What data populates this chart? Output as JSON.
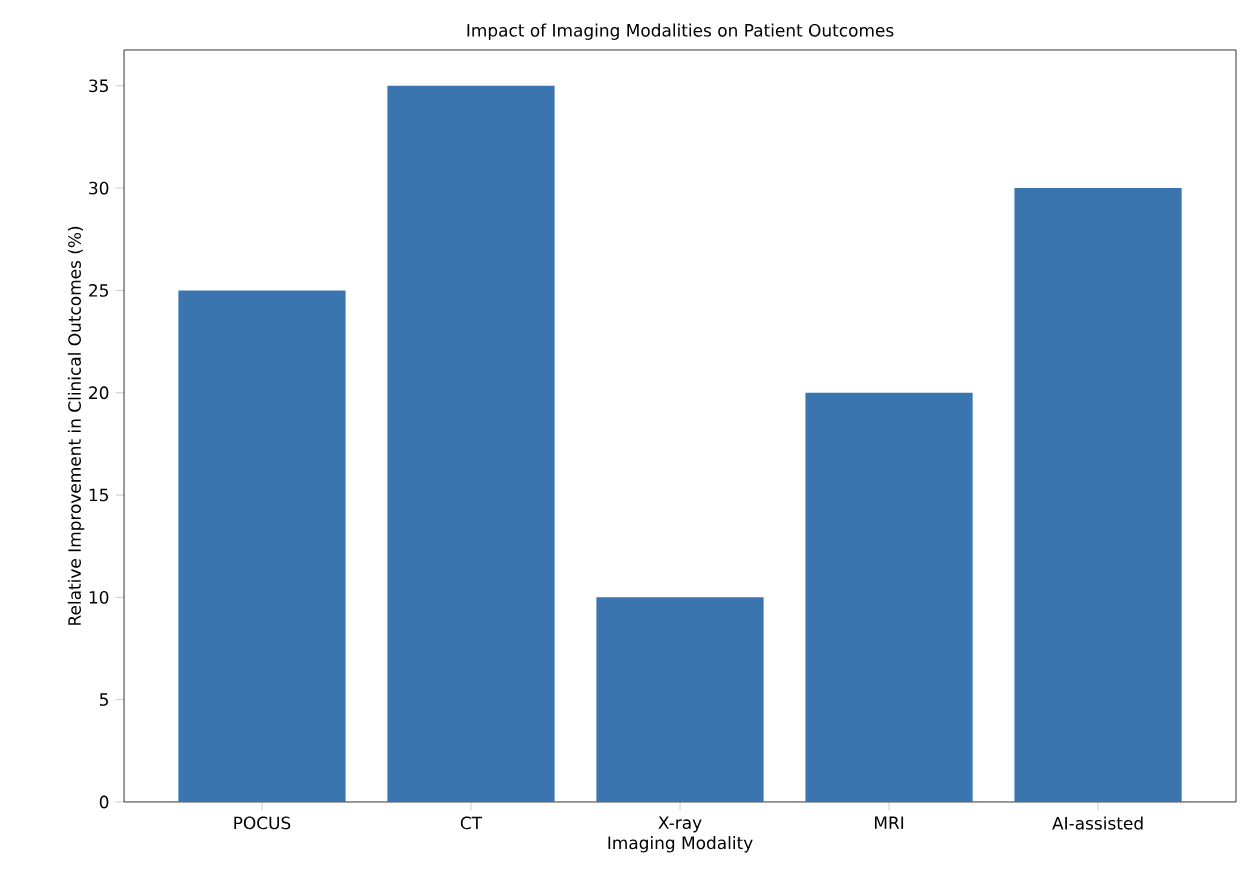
{
  "chart_data": {
    "type": "bar",
    "title": "Impact of Imaging Modalities on Patient Outcomes",
    "xlabel": "Imaging Modality",
    "ylabel": "Relative Improvement in Clinical Outcomes (%)",
    "categories": [
      "POCUS",
      "CT",
      "X-ray",
      "MRI",
      "AI-assisted"
    ],
    "values": [
      25,
      35,
      10,
      20,
      30
    ],
    "color": "#3a75af",
    "ylim": [
      0,
      36.75
    ],
    "yticks": [
      0,
      5,
      10,
      15,
      20,
      25,
      30,
      35
    ]
  }
}
